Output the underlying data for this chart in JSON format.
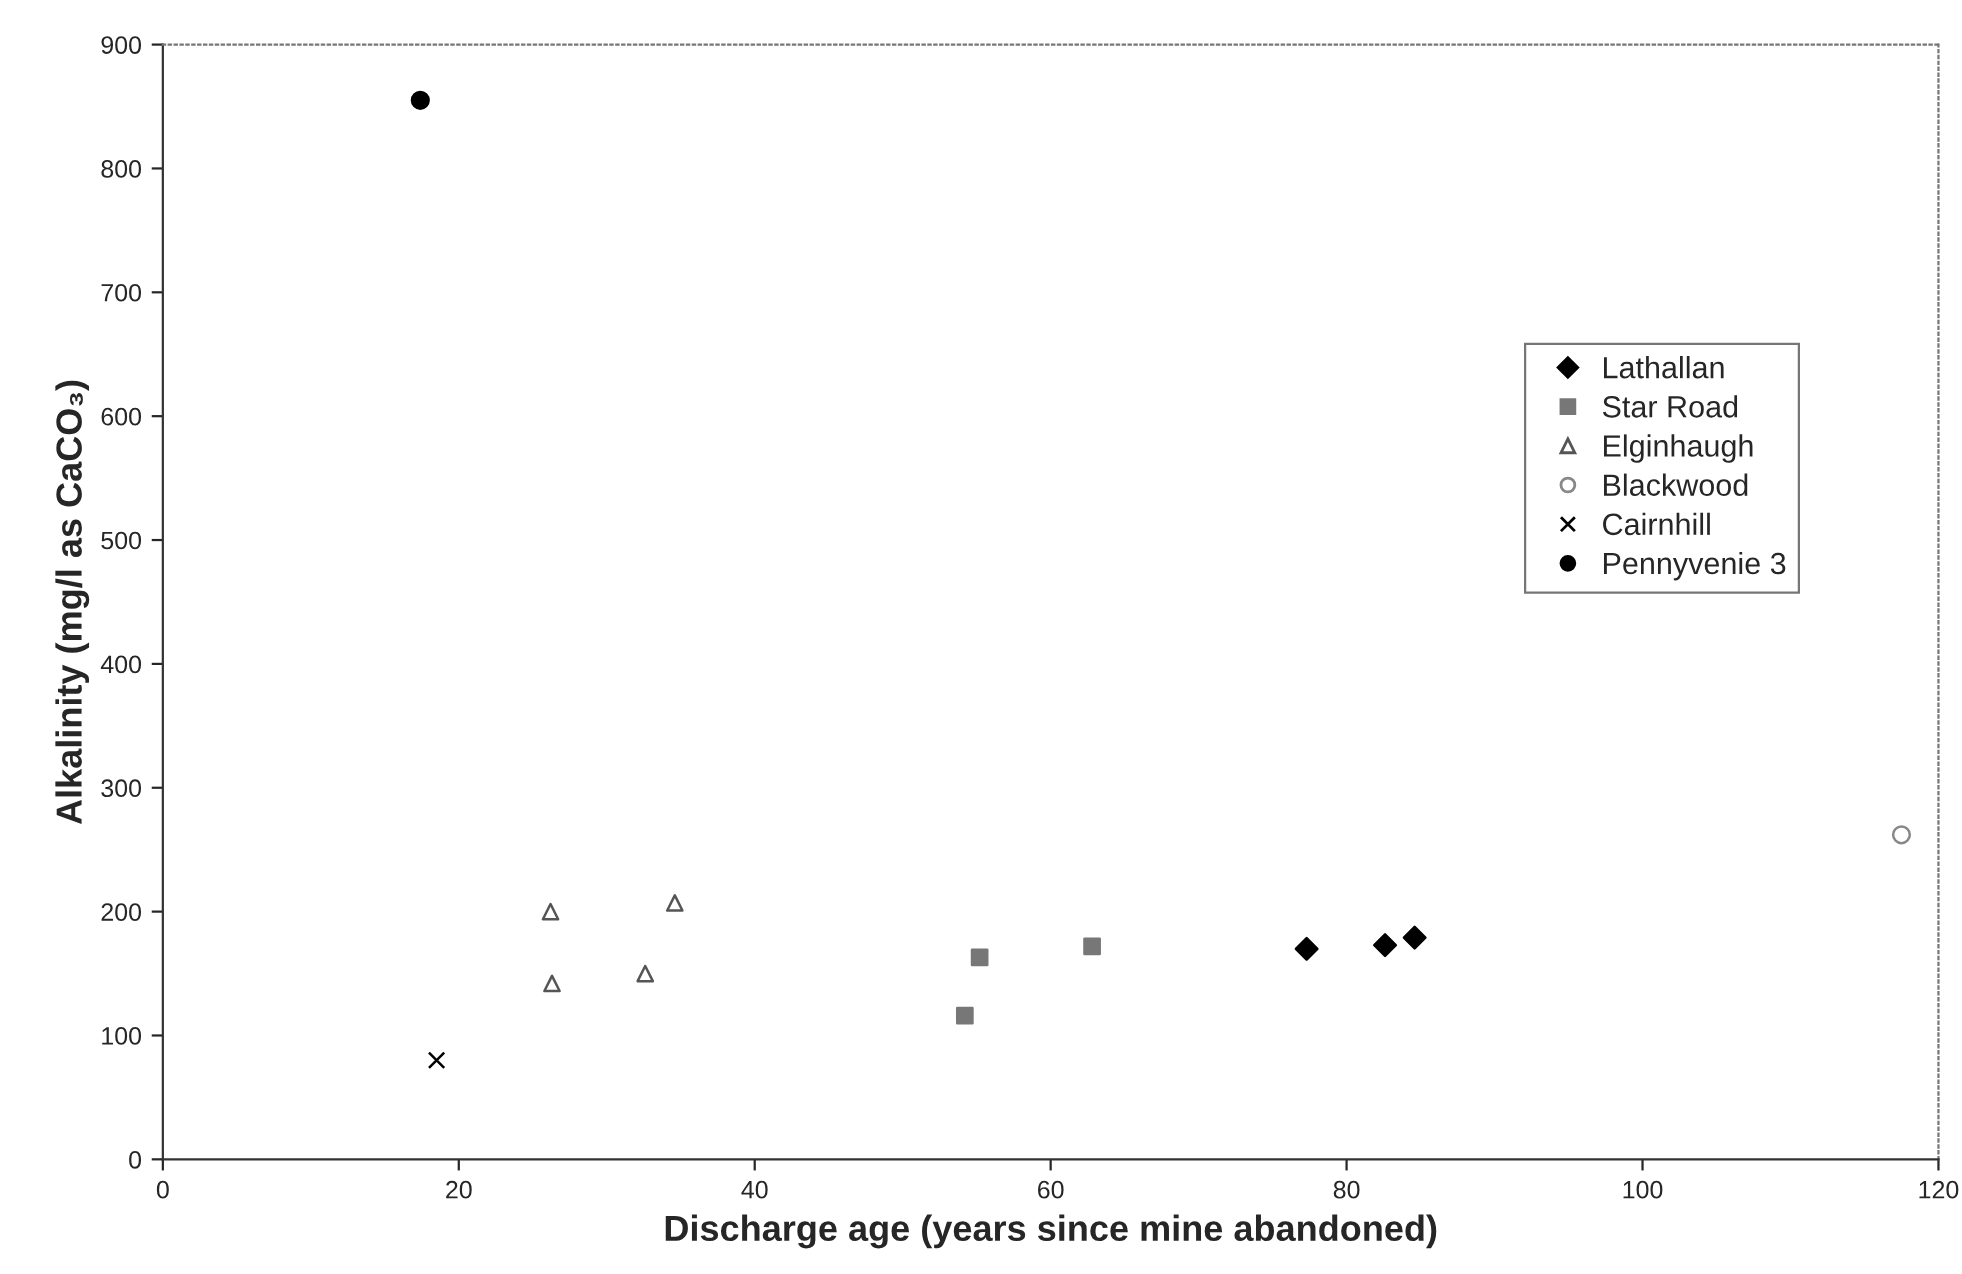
{
  "chart_data": {
    "type": "scatter",
    "xlabel": "Discharge age (years since mine abandoned)",
    "ylabel": "Alkalinity (mg/l as CaCO₃)",
    "xlim": [
      0,
      120
    ],
    "xticks": [
      0,
      20,
      40,
      60,
      80,
      100,
      120
    ],
    "ylim": [
      0,
      900
    ],
    "yticks": [
      0,
      100,
      200,
      300,
      400,
      500,
      600,
      700,
      800,
      900
    ],
    "grid": false,
    "legend": "right",
    "series": [
      {
        "name": "Lathallan",
        "color": "#000000",
        "marker": "diamond",
        "x": [
          77.3,
          82.6,
          84.6
        ],
        "values": [
          170,
          173,
          179
        ]
      },
      {
        "name": "Star Road",
        "color": "#777777",
        "marker": "square",
        "x": [
          54.2,
          55.2,
          62.8
        ],
        "values": [
          116,
          163,
          172
        ]
      },
      {
        "name": "Elginhaugh",
        "color": "#555555",
        "marker": "triangle",
        "x": [
          26.2,
          26.3,
          32.6,
          34.6
        ],
        "values": [
          200,
          142,
          150,
          207
        ]
      },
      {
        "name": "Blackwood",
        "color": "#888888",
        "marker": "circle",
        "x": [
          117.5
        ],
        "values": [
          262
        ]
      },
      {
        "name": "Cairnhill",
        "color": "#000000",
        "marker": "cross",
        "x": [
          18.5
        ],
        "values": [
          80
        ]
      },
      {
        "name": "Pennyvenie 3",
        "color": "#000000",
        "marker": "circle",
        "x": [
          17.4
        ],
        "values": [
          855
        ]
      }
    ]
  }
}
